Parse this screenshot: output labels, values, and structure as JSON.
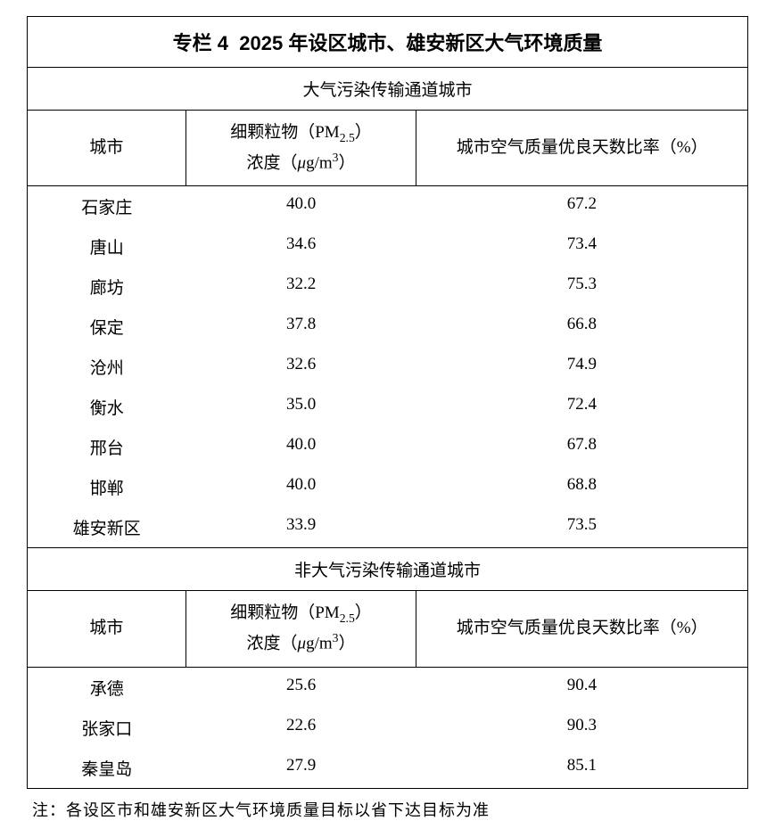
{
  "table": {
    "caption_prefix": "专栏 4",
    "caption_body": "2025 年设区城市、雄安新区大气环境质量",
    "section1_title": "大气污染传输通道城市",
    "section2_title": "非大气污染传输通道城市",
    "col_city": "城市",
    "col_pm25_l1": "细颗粒物（PM",
    "col_pm25_sub": "2.5",
    "col_pm25_l1b": "）",
    "col_pm25_l2a": "浓度（",
    "col_pm25_mu": "μ",
    "col_pm25_l2b": "g/m",
    "col_pm25_sup": "3",
    "col_pm25_l2c": "）",
    "col_aqi": "城市空气质量优良天数比率（%）",
    "section1_rows": [
      {
        "city": "石家庄",
        "pm25": "40.0",
        "aqi": "67.2"
      },
      {
        "city": "唐山",
        "pm25": "34.6",
        "aqi": "73.4"
      },
      {
        "city": "廊坊",
        "pm25": "32.2",
        "aqi": "75.3"
      },
      {
        "city": "保定",
        "pm25": "37.8",
        "aqi": "66.8"
      },
      {
        "city": "沧州",
        "pm25": "32.6",
        "aqi": "74.9"
      },
      {
        "city": "衡水",
        "pm25": "35.0",
        "aqi": "72.4"
      },
      {
        "city": "邢台",
        "pm25": "40.0",
        "aqi": "67.8"
      },
      {
        "city": "邯郸",
        "pm25": "40.0",
        "aqi": "68.8"
      },
      {
        "city": "雄安新区",
        "pm25": "33.9",
        "aqi": "73.5"
      }
    ],
    "section2_rows": [
      {
        "city": "承德",
        "pm25": "25.6",
        "aqi": "90.4"
      },
      {
        "city": "张家口",
        "pm25": "22.6",
        "aqi": "90.3"
      },
      {
        "city": "秦皇岛",
        "pm25": "27.9",
        "aqi": "85.1"
      }
    ]
  },
  "note": "注：各设区市和雄安新区大气环境质量目标以省下达目标为准",
  "style": {
    "border_color": "#000000",
    "background_color": "#ffffff",
    "text_color": "#000000",
    "title_fontsize_pt": 16,
    "body_fontsize_pt": 14,
    "note_fontsize_pt": 13,
    "col_widths_pct": [
      22,
      32,
      46
    ]
  }
}
